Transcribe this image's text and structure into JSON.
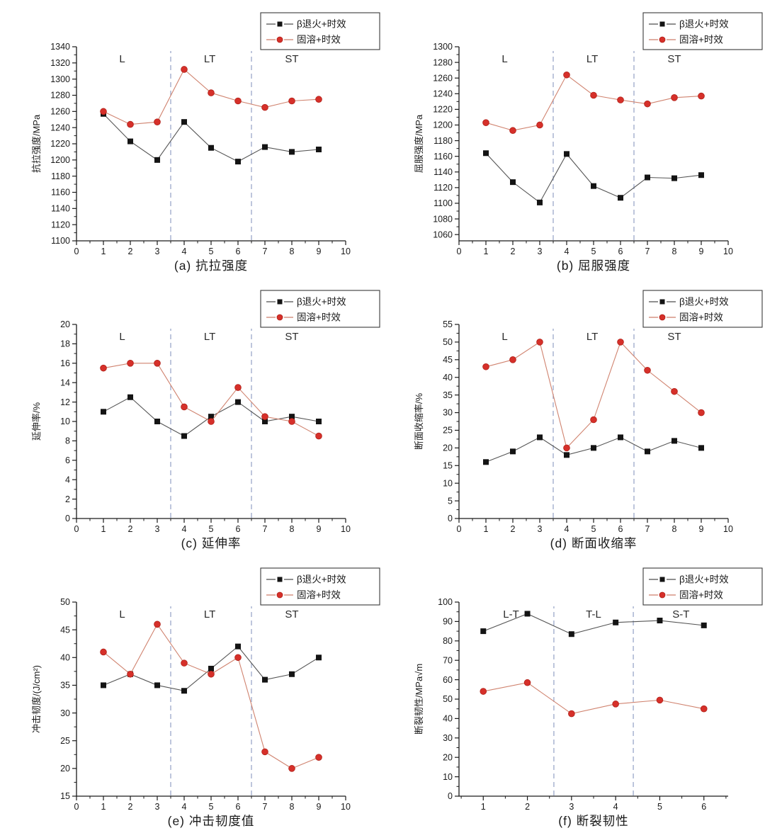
{
  "series_styles": [
    {
      "name": "β退火+时效",
      "marker": "square",
      "marker_color": "#141414",
      "line_color": "#555555"
    },
    {
      "name": "固溶+时效",
      "marker": "circle",
      "marker_color": "#d6302a",
      "line_color": "#d0836f"
    }
  ],
  "divider_color": "#92a0c4",
  "axis_color": "#1a1a1a",
  "chart_data": [
    {
      "id": "a",
      "type": "line",
      "caption": "(a) 抗拉强度",
      "ylabel": "抗拉强度/MPa",
      "ylim": [
        1100,
        1340
      ],
      "ytick_start": 1100,
      "ytick_step": 20,
      "xlim": [
        0,
        10
      ],
      "xticks": [
        0,
        1,
        2,
        3,
        4,
        5,
        6,
        7,
        8,
        9,
        10
      ],
      "x": [
        1,
        2,
        3,
        4,
        5,
        6,
        7,
        8,
        9
      ],
      "series": [
        {
          "name": "β退火+时效",
          "values": [
            1257,
            1223,
            1200,
            1247,
            1215,
            1198,
            1216,
            1210,
            1213
          ]
        },
        {
          "name": "固溶+时效",
          "values": [
            1260,
            1244,
            1247,
            1312,
            1283,
            1273,
            1265,
            1273,
            1275
          ]
        }
      ],
      "dividers": [
        3.5,
        6.5
      ],
      "regions": [
        {
          "label": "L",
          "x": 1.7
        },
        {
          "label": "LT",
          "x": 4.95
        },
        {
          "label": "ST",
          "x": 8.0
        }
      ]
    },
    {
      "id": "b",
      "type": "line",
      "caption": "(b) 屈服强度",
      "ylabel": "屈服强度/MPa",
      "ylim": [
        1052,
        1300
      ],
      "ytick_start": 1060,
      "ytick_step": 20,
      "xlim": [
        0,
        10
      ],
      "xticks": [
        0,
        1,
        2,
        3,
        4,
        5,
        6,
        7,
        8,
        9,
        10
      ],
      "x": [
        1,
        2,
        3,
        4,
        5,
        6,
        7,
        8,
        9
      ],
      "series": [
        {
          "name": "β退火+时效",
          "values": [
            1164,
            1127,
            1101,
            1163,
            1122,
            1107,
            1133,
            1132,
            1136
          ]
        },
        {
          "name": "固溶+时效",
          "values": [
            1203,
            1193,
            1200,
            1264,
            1238,
            1232,
            1227,
            1235,
            1237
          ]
        }
      ],
      "dividers": [
        3.5,
        6.5
      ],
      "regions": [
        {
          "label": "L",
          "x": 1.7
        },
        {
          "label": "LT",
          "x": 4.95
        },
        {
          "label": "ST",
          "x": 8.0
        }
      ]
    },
    {
      "id": "c",
      "type": "line",
      "caption": "(c) 延伸率",
      "ylabel": "延伸率/%",
      "ylim": [
        0,
        20
      ],
      "ytick_start": 0,
      "ytick_step": 2,
      "xlim": [
        0,
        10
      ],
      "xticks": [
        0,
        1,
        2,
        3,
        4,
        5,
        6,
        7,
        8,
        9,
        10
      ],
      "x": [
        1,
        2,
        3,
        4,
        5,
        6,
        7,
        8,
        9
      ],
      "series": [
        {
          "name": "β退火+时效",
          "values": [
            11,
            12.5,
            10,
            8.5,
            10.5,
            12,
            10,
            10.5,
            10
          ]
        },
        {
          "name": "固溶+时效",
          "values": [
            15.5,
            16,
            16,
            11.5,
            10,
            13.5,
            10.5,
            10,
            8.5
          ]
        }
      ],
      "dividers": [
        3.5,
        6.5
      ],
      "regions": [
        {
          "label": "L",
          "x": 1.7
        },
        {
          "label": "LT",
          "x": 4.95
        },
        {
          "label": "ST",
          "x": 8.0
        }
      ]
    },
    {
      "id": "d",
      "type": "line",
      "caption": "(d) 断面收缩率",
      "ylabel": "断面收缩率/%",
      "ylim": [
        0,
        55
      ],
      "ytick_start": 0,
      "ytick_step": 5,
      "xlim": [
        0,
        10
      ],
      "xticks": [
        0,
        1,
        2,
        3,
        4,
        5,
        6,
        7,
        8,
        9,
        10
      ],
      "x": [
        1,
        2,
        3,
        4,
        5,
        6,
        7,
        8,
        9
      ],
      "series": [
        {
          "name": "β退火+时效",
          "values": [
            16,
            19,
            23,
            18,
            20,
            23,
            19,
            22,
            20
          ]
        },
        {
          "name": "固溶+时效",
          "values": [
            43,
            45,
            50,
            20,
            28,
            50,
            42,
            36,
            30
          ]
        }
      ],
      "dividers": [
        3.5,
        6.5
      ],
      "regions": [
        {
          "label": "L",
          "x": 1.7
        },
        {
          "label": "LT",
          "x": 4.95
        },
        {
          "label": "ST",
          "x": 8.0
        }
      ]
    },
    {
      "id": "e",
      "type": "line",
      "caption": "(e) 冲击韧度值",
      "ylabel": "冲击韧度/(J/cm²)",
      "ylim": [
        15,
        50
      ],
      "ytick_start": 15,
      "ytick_step": 5,
      "xlim": [
        0,
        10
      ],
      "xticks": [
        0,
        1,
        2,
        3,
        4,
        5,
        6,
        7,
        8,
        9,
        10
      ],
      "x": [
        1,
        2,
        3,
        4,
        5,
        6,
        7,
        8,
        9
      ],
      "series": [
        {
          "name": "β退火+时效",
          "values": [
            35,
            37,
            35,
            34,
            38,
            42,
            36,
            37,
            40
          ]
        },
        {
          "name": "固溶+时效",
          "values": [
            41,
            37,
            46,
            39,
            37,
            40,
            23,
            20,
            22
          ]
        }
      ],
      "dividers": [
        3.5,
        6.5
      ],
      "regions": [
        {
          "label": "L",
          "x": 1.7
        },
        {
          "label": "LT",
          "x": 4.95
        },
        {
          "label": "ST",
          "x": 8.0
        }
      ]
    },
    {
      "id": "f",
      "type": "line",
      "caption": "(f) 断裂韧性",
      "ylabel": "断裂韧性/MPa√m",
      "ylim": [
        0,
        100
      ],
      "ytick_start": 0,
      "ytick_step": 10,
      "xlim": [
        0.45,
        6.55
      ],
      "xticks": [
        1,
        2,
        3,
        4,
        5,
        6
      ],
      "x": [
        1,
        2,
        3,
        4,
        5,
        6
      ],
      "series": [
        {
          "name": "β退火+时效",
          "values": [
            85,
            94,
            83.5,
            89.5,
            90.5,
            88
          ]
        },
        {
          "name": "固溶+时效",
          "values": [
            54,
            58.5,
            42.5,
            47.5,
            49.5,
            45
          ]
        }
      ],
      "dividers": [
        2.6,
        4.4
      ],
      "regions": [
        {
          "label": "L-T",
          "x": 1.63
        },
        {
          "label": "T-L",
          "x": 3.5
        },
        {
          "label": "S-T",
          "x": 5.48
        }
      ]
    }
  ]
}
